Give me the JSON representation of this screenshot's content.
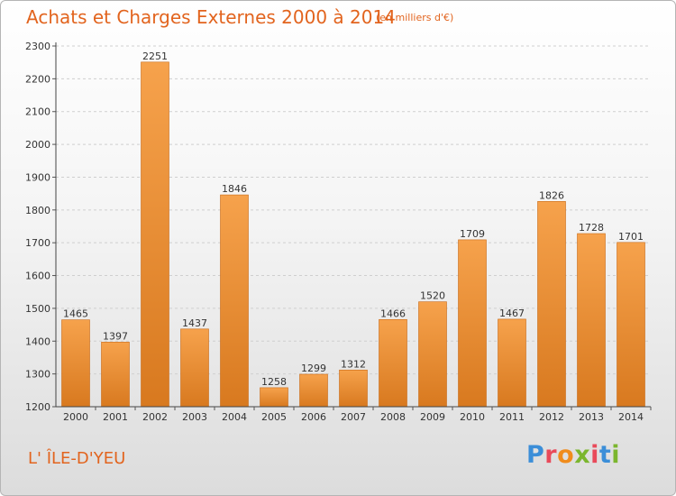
{
  "header": {
    "title": "Achats et Charges Externes 2000 à 2014",
    "subtitle": "(en milliers d'€)"
  },
  "footer": {
    "place": "L' ÎLE-D'YEU",
    "logo_letters": [
      {
        "ch": "P",
        "color": "#3b8ed8"
      },
      {
        "ch": "r",
        "color": "#e94a5a"
      },
      {
        "ch": "o",
        "color": "#f08c1c"
      },
      {
        "ch": "x",
        "color": "#7bb62e"
      },
      {
        "ch": "i",
        "color": "#e94a5a"
      },
      {
        "ch": "t",
        "color": "#3b8ed8"
      },
      {
        "ch": "i",
        "color": "#7bb62e"
      }
    ]
  },
  "colors": {
    "accent": "#e2641e",
    "bar_top": "#f6a24c",
    "bar_bottom": "#d8791f"
  },
  "chart_data": {
    "type": "bar",
    "categories": [
      "2000",
      "2001",
      "2002",
      "2003",
      "2004",
      "2005",
      "2006",
      "2007",
      "2008",
      "2009",
      "2010",
      "2011",
      "2012",
      "2013",
      "2014"
    ],
    "values": [
      1465,
      1397,
      2251,
      1437,
      1846,
      1258,
      1299,
      1312,
      1466,
      1520,
      1709,
      1467,
      1826,
      1728,
      1701
    ],
    "ylim": [
      1200,
      2300
    ],
    "yticks": [
      1200,
      1300,
      1400,
      1500,
      1600,
      1700,
      1800,
      1900,
      2000,
      2100,
      2200,
      2300
    ],
    "grid": true
  }
}
